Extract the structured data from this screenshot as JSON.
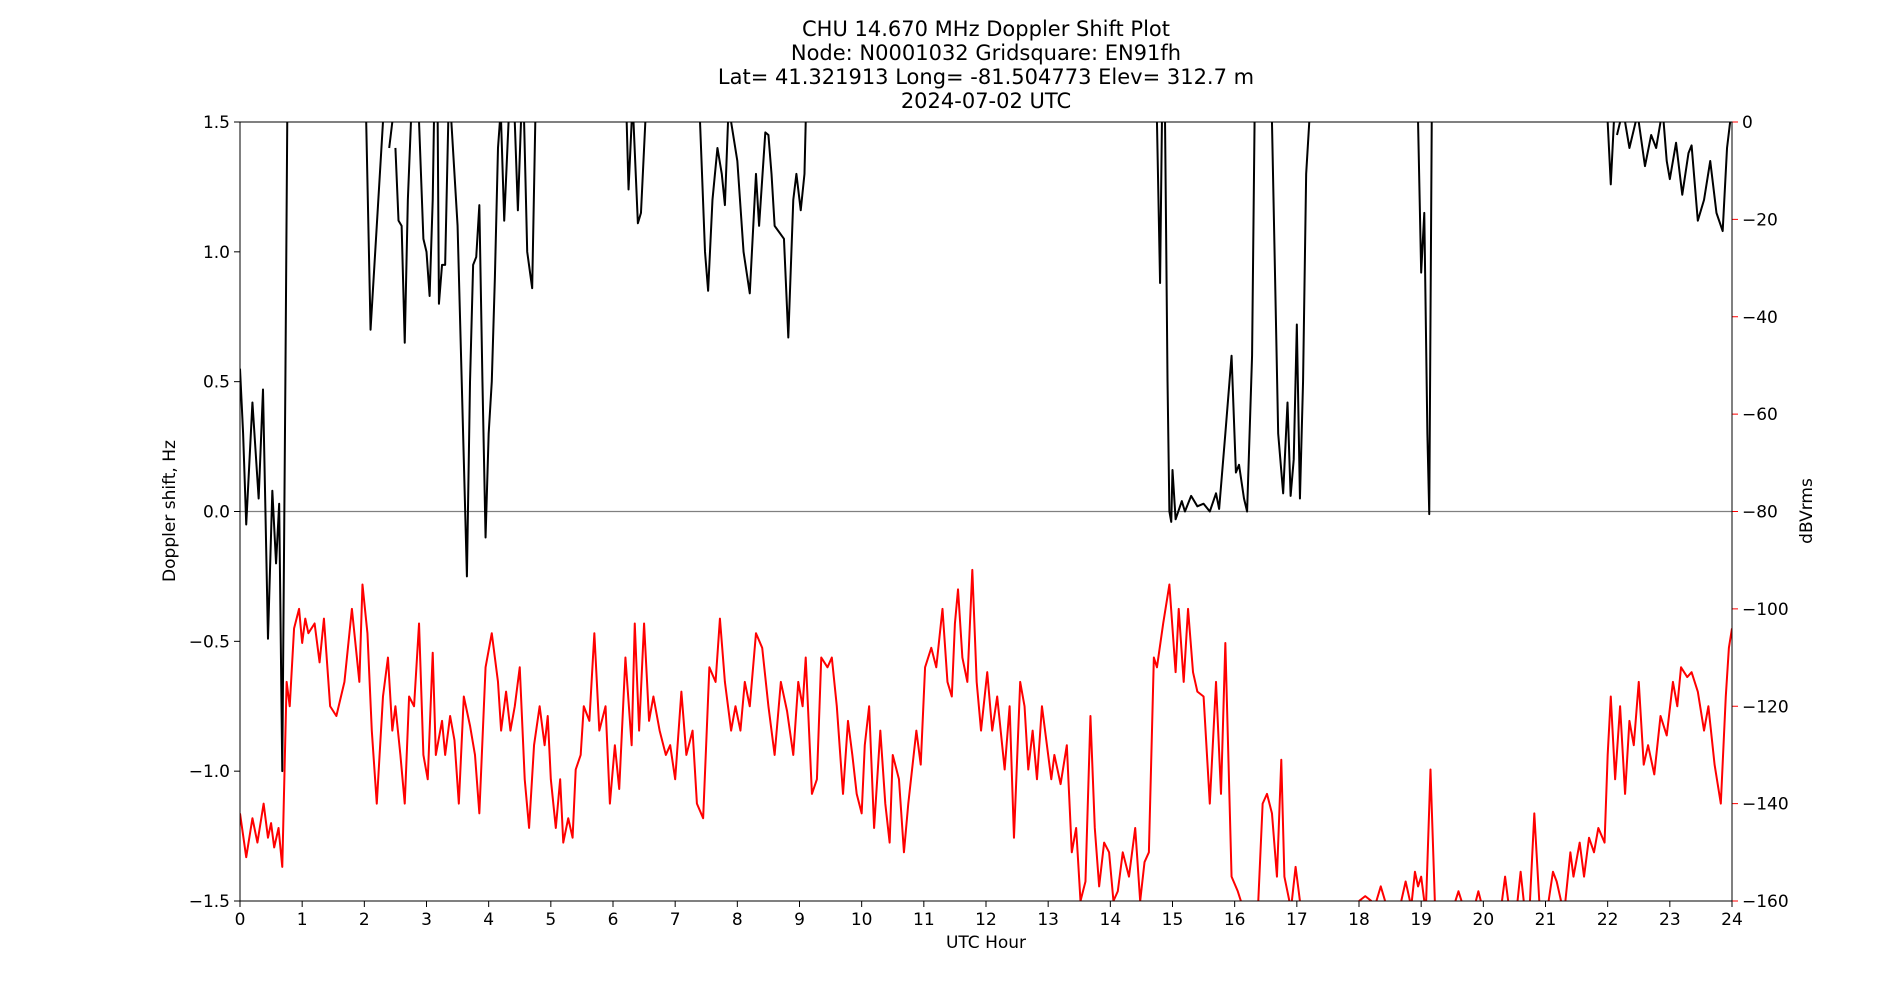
{
  "chart_data": {
    "type": "line",
    "title": [
      "CHU 14.670 MHz Doppler Shift Plot",
      "Node:  N0001032     Gridsquare:  EN91fh",
      "Lat= 41.321913    Long= -81.504773    Elev= 312.7 m",
      "2024-07-02  UTC"
    ],
    "xlabel": "UTC Hour",
    "ylabel": "Doppler shift, Hz",
    "y2label": "dBVrms",
    "xlim": [
      0,
      24
    ],
    "xticks": [
      0,
      1,
      2,
      3,
      4,
      5,
      6,
      7,
      8,
      9,
      10,
      11,
      12,
      13,
      14,
      15,
      16,
      17,
      18,
      19,
      20,
      21,
      22,
      23,
      24
    ],
    "ylim": [
      -1.5,
      1.5
    ],
    "yticks": [
      {
        "value": -1.5,
        "label": "−1.5"
      },
      {
        "value": -1.0,
        "label": "−1.0"
      },
      {
        "value": -0.5,
        "label": "−0.5"
      },
      {
        "value": 0,
        "label": "0.0"
      },
      0.5,
      {
        "value": 1.0,
        "label": "1.0"
      },
      1.5
    ],
    "y2lim": [
      -160,
      0
    ],
    "y2ticks": [
      {
        "value": -160,
        "label": "−160"
      },
      {
        "value": -140,
        "label": "−140"
      },
      {
        "value": -120,
        "label": "−120"
      },
      {
        "value": -100,
        "label": "−100"
      },
      {
        "value": -80,
        "label": "−80"
      },
      {
        "value": -60,
        "label": "−60"
      },
      {
        "value": -40,
        "label": "−40"
      },
      {
        "value": -20,
        "label": "−20"
      },
      0
    ],
    "y2color": "#ff0000",
    "reference_line": 0,
    "series": [
      {
        "color": "#000000",
        "x": [
          0,
          0.05,
          0.1,
          0.2,
          0.3,
          0.37,
          0.45,
          0.52,
          0.58,
          0.63,
          0.68,
          0.73,
          0.76,
          1.4,
          2.03,
          2.1,
          2.2,
          2.3,
          2.35,
          2.4,
          2.45,
          2.48,
          2.5,
          2.55,
          2.6,
          2.65,
          2.7,
          2.75,
          2.8,
          2.88,
          2.95,
          3.0,
          3.05,
          3.1,
          3.12,
          3.15,
          3.18,
          3.2,
          3.25,
          3.3,
          3.35,
          3.38,
          3.4,
          3.5,
          3.6,
          3.65,
          3.7,
          3.75,
          3.8,
          3.85,
          3.9,
          3.95,
          4.0,
          4.05,
          4.1,
          4.15,
          4.18,
          4.19,
          4.2,
          4.25,
          4.32,
          4.37,
          4.42,
          4.47,
          4.52,
          4.55,
          4.57,
          4.62,
          4.7,
          4.75,
          5.5,
          6.22,
          6.25,
          6.3,
          6.32,
          6.33,
          6.4,
          6.45,
          6.52,
          7.0,
          7.4,
          7.48,
          7.53,
          7.6,
          7.68,
          7.75,
          7.8,
          7.85,
          7.88,
          7.9,
          8.0,
          8.1,
          8.2,
          8.3,
          8.35,
          8.45,
          8.5,
          8.55,
          8.6,
          8.75,
          8.82,
          8.9,
          8.95,
          9.02,
          9.08,
          9.1,
          12,
          14.75,
          14.8,
          14.83,
          14.85,
          14.88,
          14.92,
          14.95,
          14.98,
          15.0,
          15.05,
          15.15,
          15.2,
          15.3,
          15.4,
          15.5,
          15.6,
          15.7,
          15.75,
          15.85,
          15.95,
          16.02,
          16.07,
          16.15,
          16.2,
          16.28,
          16.32,
          16.45,
          16.6,
          16.65,
          16.7,
          16.78,
          16.85,
          16.9,
          16.95,
          17.0,
          17.05,
          17.1,
          17.15,
          17.2,
          18,
          18.95,
          19.0,
          19.05,
          19.1,
          19.13,
          19.17,
          20.5,
          22.0,
          22.05,
          22.1,
          22.12,
          22.15,
          22.2,
          22.24,
          22.28,
          22.35,
          22.45,
          22.48,
          22.5,
          22.6,
          22.7,
          22.78,
          22.85,
          22.88,
          22.9,
          22.95,
          23.0,
          23.1,
          23.2,
          23.3,
          23.35,
          23.45,
          23.55,
          23.65,
          23.75,
          23.85,
          23.92,
          23.97
        ],
        "values": [
          0.55,
          0.3,
          -0.05,
          0.42,
          0.05,
          0.47,
          -0.49,
          0.08,
          -0.2,
          0.03,
          -1.0,
          0.5,
          1.5,
          null,
          1.5,
          0.7,
          1.1,
          1.5,
          null,
          1.4,
          1.5,
          null,
          1.4,
          1.12,
          1.1,
          0.65,
          1.2,
          1.5,
          null,
          1.5,
          1.05,
          1.0,
          0.83,
          1.2,
          1.5,
          null,
          1.5,
          0.8,
          0.95,
          0.95,
          1.5,
          null,
          1.5,
          1.1,
          0.2,
          -0.25,
          0.5,
          0.95,
          0.98,
          1.18,
          0.5,
          -0.1,
          0.3,
          0.5,
          0.9,
          1.4,
          1.5,
          null,
          1.5,
          1.12,
          1.5,
          null,
          1.5,
          1.16,
          1.5,
          null,
          1.5,
          1.0,
          0.86,
          1.5,
          null,
          1.5,
          1.24,
          1.5,
          null,
          1.5,
          1.11,
          1.15,
          1.5,
          null,
          1.5,
          1.0,
          0.85,
          1.2,
          1.4,
          1.3,
          1.18,
          1.5,
          null,
          1.5,
          1.35,
          1.0,
          0.84,
          1.3,
          1.1,
          1.46,
          1.45,
          1.3,
          1.1,
          1.05,
          0.67,
          1.2,
          1.3,
          1.16,
          1.3,
          1.5,
          null,
          1.5,
          0.88,
          1.5,
          null,
          1.5,
          0.5,
          0.0,
          -0.04,
          0.16,
          -0.03,
          0.04,
          0.0,
          0.06,
          0.02,
          0.03,
          0.0,
          0.07,
          0.01,
          0.3,
          0.6,
          0.15,
          0.18,
          0.05,
          0.0,
          0.6,
          1.5,
          null,
          1.5,
          0.9,
          0.3,
          0.07,
          0.42,
          0.06,
          0.2,
          0.72,
          0.05,
          0.5,
          1.3,
          1.5,
          null,
          1.5,
          0.92,
          1.15,
          0.3,
          -0.01,
          1.5,
          null,
          1.5,
          1.26,
          1.5,
          null,
          1.45,
          1.5,
          null,
          1.5,
          1.4,
          1.5,
          null,
          1.5,
          1.33,
          1.45,
          1.4,
          1.5,
          null,
          1.5,
          1.35,
          1.28,
          1.42,
          1.22,
          1.38,
          1.41,
          1.12,
          1.2,
          1.35,
          1.15,
          1.08,
          1.4,
          1.5
        ]
      },
      {
        "color": "#ff0000",
        "axis": "y2",
        "x": [
          0,
          0.1,
          0.2,
          0.28,
          0.38,
          0.45,
          0.5,
          0.55,
          0.62,
          0.68,
          0.75,
          0.8,
          0.87,
          0.95,
          1.0,
          1.05,
          1.1,
          1.2,
          1.28,
          1.35,
          1.45,
          1.55,
          1.68,
          1.8,
          1.92,
          1.97,
          2.05,
          2.12,
          2.2,
          2.3,
          2.38,
          2.45,
          2.5,
          2.58,
          2.65,
          2.72,
          2.8,
          2.88,
          2.95,
          3.02,
          3.1,
          3.15,
          3.25,
          3.3,
          3.38,
          3.45,
          3.52,
          3.6,
          3.7,
          3.78,
          3.85,
          3.95,
          4.05,
          4.15,
          4.2,
          4.28,
          4.35,
          4.42,
          4.5,
          4.58,
          4.65,
          4.73,
          4.82,
          4.9,
          4.95,
          5.0,
          5.08,
          5.15,
          5.2,
          5.28,
          5.35,
          5.4,
          5.48,
          5.53,
          5.62,
          5.7,
          5.78,
          5.88,
          5.95,
          6.03,
          6.1,
          6.2,
          6.3,
          6.35,
          6.42,
          6.5,
          6.58,
          6.65,
          6.75,
          6.85,
          6.92,
          7.0,
          7.1,
          7.18,
          7.28,
          7.35,
          7.45,
          7.55,
          7.65,
          7.72,
          7.8,
          7.9,
          7.97,
          8.05,
          8.12,
          8.2,
          8.3,
          8.4,
          8.5,
          8.6,
          8.7,
          8.8,
          8.9,
          8.98,
          9.05,
          9.1,
          9.2,
          9.28,
          9.35,
          9.45,
          9.52,
          9.6,
          9.7,
          9.78,
          9.85,
          9.92,
          10.0,
          10.05,
          10.12,
          10.2,
          10.3,
          10.38,
          10.45,
          10.5,
          10.6,
          10.68,
          10.75,
          10.88,
          10.95,
          11.02,
          11.12,
          11.2,
          11.3,
          11.38,
          11.45,
          11.5,
          11.55,
          11.62,
          11.7,
          11.78,
          11.85,
          11.92,
          12.02,
          12.1,
          12.18,
          12.3,
          12.38,
          12.45,
          12.55,
          12.62,
          12.68,
          12.75,
          12.82,
          12.9,
          12.95,
          13.05,
          13.1,
          13.2,
          13.3,
          13.38,
          13.45,
          13.52,
          13.6,
          13.68,
          13.75,
          13.82,
          13.9,
          13.98,
          14.05,
          14.12,
          14.2,
          14.3,
          14.4,
          14.48,
          14.55,
          14.62,
          14.7,
          14.75,
          14.85,
          14.95,
          15.05,
          15.1,
          15.18,
          15.25,
          15.33,
          15.4,
          15.5,
          15.6,
          15.7,
          15.78,
          15.85,
          15.95,
          16.05,
          16.1,
          16.25,
          16.38,
          16.45,
          16.52,
          16.6,
          16.68,
          16.75,
          16.8,
          16.88,
          16.9,
          16.92,
          16.98,
          17.05,
          17.5,
          18.0,
          18.1,
          18.2,
          18.24,
          18.28,
          18.35,
          18.42,
          18.55,
          18.68,
          18.75,
          18.82,
          18.84,
          18.85,
          18.9,
          18.95,
          19.0,
          19.05,
          19.06,
          19.08,
          19.15,
          19.22,
          19.4,
          19.55,
          19.6,
          19.65,
          19.75,
          19.88,
          19.92,
          19.96,
          20.1,
          20.3,
          20.35,
          20.4,
          20.5,
          20.55,
          20.6,
          20.65,
          20.7,
          20.75,
          20.82,
          20.9,
          21.0,
          21.05,
          21.12,
          21.18,
          21.25,
          21.3,
          21.32,
          21.4,
          21.45,
          21.55,
          21.62,
          21.7,
          21.78,
          21.85,
          21.95,
          22.0,
          22.05,
          22.12,
          22.2,
          22.28,
          22.35,
          22.42,
          22.5,
          22.58,
          22.65,
          22.75,
          22.85,
          22.95,
          23.05,
          23.12,
          23.18,
          23.28,
          23.35,
          23.45,
          23.55,
          23.62,
          23.72,
          23.82,
          23.9,
          23.95,
          24.0
        ],
        "values": [
          -142,
          -151,
          -143,
          -148,
          -140,
          -147,
          -144,
          -149,
          -145,
          -153,
          -115,
          -120,
          -104,
          -100,
          -107,
          -102,
          -105,
          -103,
          -111,
          -102,
          -120,
          -122,
          -115,
          -100,
          -115,
          -95,
          -105,
          -125,
          -140,
          -118,
          -110,
          -125,
          -120,
          -130,
          -140,
          -118,
          -120,
          -103,
          -130,
          -135,
          -109,
          -130,
          -123,
          -130,
          -122,
          -127,
          -140,
          -118,
          -124,
          -130,
          -142,
          -112,
          -105,
          -115,
          -125,
          -117,
          -125,
          -120,
          -112,
          -135,
          -145,
          -128,
          -120,
          -128,
          -122,
          -135,
          -145,
          -135,
          -148,
          -143,
          -147,
          -133,
          -130,
          -120,
          -123,
          -105,
          -125,
          -120,
          -140,
          -128,
          -137,
          -110,
          -128,
          -103,
          -125,
          -103,
          -123,
          -118,
          -125,
          -130,
          -128,
          -135,
          -117,
          -130,
          -125,
          -140,
          -143,
          -112,
          -115,
          -102,
          -115,
          -125,
          -120,
          -125,
          -115,
          -120,
          -105,
          -108,
          -120,
          -130,
          -115,
          -121,
          -130,
          -115,
          -120,
          -110,
          -138,
          -135,
          -110,
          -112,
          -110,
          -120,
          -138,
          -123,
          -130,
          -138,
          -142,
          -128,
          -120,
          -145,
          -125,
          -140,
          -148,
          -130,
          -135,
          -150,
          -140,
          -125,
          -132,
          -112,
          -108,
          -112,
          -100,
          -115,
          -118,
          -103,
          -96,
          -110,
          -115,
          -92,
          -115,
          -125,
          -113,
          -125,
          -118,
          -133,
          -120,
          -147,
          -115,
          -120,
          -133,
          -125,
          -135,
          -120,
          -125,
          -135,
          -130,
          -136,
          -128,
          -150,
          -145,
          -160,
          -156,
          -122,
          -145,
          -157,
          -148,
          -150,
          -160,
          -158,
          -150,
          -155,
          -145,
          -160,
          -152,
          -150,
          -110,
          -112,
          -103,
          -95,
          -113,
          -100,
          -115,
          -100,
          -113,
          -117,
          -118,
          -140,
          -115,
          -138,
          -107,
          -155,
          -158,
          -160,
          null,
          -160,
          -140,
          -138,
          -142,
          -155,
          -131,
          -155,
          -160,
          null,
          -160,
          -153,
          -160,
          null,
          -160,
          -159,
          -160,
          null,
          -160,
          -157,
          -160,
          null,
          -160,
          -156,
          -160,
          null,
          -160,
          -154,
          -157,
          -155,
          -160,
          null,
          -160,
          -133,
          -160,
          null,
          -160,
          -158,
          -160,
          null,
          -160,
          -158,
          -160,
          null,
          -160,
          -155,
          -160,
          null,
          -160,
          -154,
          -160,
          null,
          -160,
          -142,
          -160,
          null,
          -160,
          -154,
          -156,
          -160,
          null,
          -160,
          -150,
          -155,
          -148,
          -155,
          -147,
          -150,
          -145,
          -148,
          -130,
          -118,
          -135,
          -120,
          -138,
          -123,
          -128,
          -115,
          -132,
          -128,
          -134,
          -122,
          -126,
          -115,
          -120,
          -112,
          -114,
          -113,
          -117,
          -125,
          -120,
          -132,
          -140,
          -118,
          -108,
          -104
        ]
      }
    ]
  }
}
